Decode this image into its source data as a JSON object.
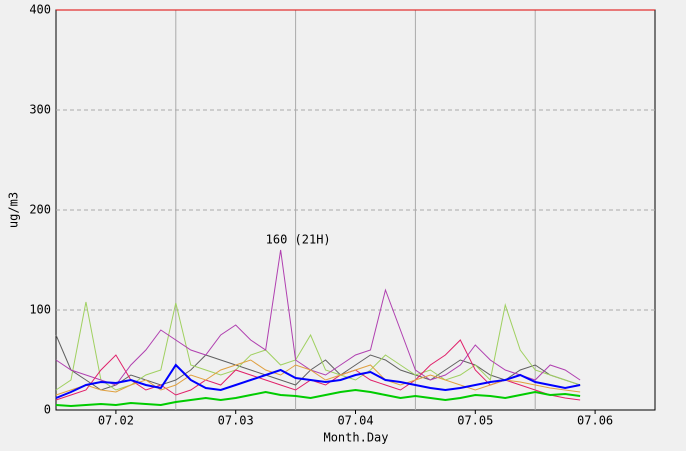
{
  "chart_data": {
    "type": "line",
    "xlabel": "Month.Day",
    "ylabel": "ug/m3",
    "annotation": "160 (21H)",
    "xlim": [
      1.5,
      6.5
    ],
    "ylim": [
      0,
      400
    ],
    "xticks": [
      {
        "value": 2,
        "label": "07.02"
      },
      {
        "value": 3,
        "label": "07.03"
      },
      {
        "value": 4,
        "label": "07.04"
      },
      {
        "value": 5,
        "label": "07.05"
      },
      {
        "value": 6,
        "label": "07.06"
      }
    ],
    "yticks": [
      0,
      100,
      200,
      300,
      400
    ],
    "grid": true,
    "x": [
      1.5,
      1.625,
      1.75,
      1.875,
      2,
      2.125,
      2.25,
      2.375,
      2.5,
      2.625,
      2.75,
      2.875,
      3,
      3.125,
      3.25,
      3.375,
      3.5,
      3.625,
      3.75,
      3.875,
      4,
      4.125,
      4.25,
      4.375,
      4.5,
      4.625,
      4.75,
      4.875,
      5,
      5.125,
      5.25,
      5.375,
      5.5,
      5.625,
      5.75,
      5.875
    ],
    "series": [
      {
        "color": "#606060",
        "values": [
          75,
          40,
          30,
          20,
          25,
          35,
          30,
          25,
          30,
          40,
          55,
          50,
          45,
          40,
          35,
          30,
          25,
          40,
          50,
          35,
          45,
          55,
          50,
          40,
          35,
          30,
          40,
          50,
          45,
          35,
          30,
          40,
          45,
          35,
          30,
          25
        ]
      },
      {
        "color": "#a0d060",
        "values": [
          20,
          30,
          108,
          30,
          20,
          25,
          35,
          40,
          107,
          45,
          40,
          35,
          40,
          55,
          60,
          45,
          50,
          75,
          40,
          35,
          30,
          40,
          55,
          45,
          35,
          40,
          30,
          35,
          45,
          30,
          105,
          60,
          40,
          35,
          30,
          25
        ]
      },
      {
        "color": "#b040b0",
        "values": [
          50,
          40,
          35,
          30,
          25,
          45,
          60,
          80,
          70,
          60,
          55,
          75,
          85,
          70,
          60,
          160,
          50,
          40,
          35,
          45,
          55,
          60,
          120,
          80,
          40,
          30,
          35,
          45,
          65,
          50,
          40,
          35,
          30,
          45,
          40,
          30
        ]
      },
      {
        "color": "#e0206a",
        "values": [
          10,
          15,
          20,
          40,
          55,
          30,
          20,
          25,
          15,
          20,
          30,
          25,
          40,
          35,
          30,
          25,
          20,
          30,
          25,
          35,
          40,
          30,
          25,
          20,
          30,
          45,
          55,
          70,
          40,
          25,
          30,
          25,
          20,
          15,
          12,
          10
        ]
      },
      {
        "color": "#e0a040",
        "values": [
          15,
          20,
          25,
          20,
          18,
          25,
          30,
          20,
          25,
          35,
          30,
          40,
          45,
          50,
          40,
          35,
          45,
          40,
          30,
          35,
          40,
          45,
          30,
          25,
          30,
          35,
          30,
          25,
          20,
          25,
          30,
          28,
          25,
          22,
          20,
          18
        ]
      },
      {
        "color": "#00cc00",
        "values": [
          5,
          4,
          5,
          6,
          5,
          7,
          6,
          5,
          8,
          10,
          12,
          10,
          12,
          15,
          18,
          15,
          14,
          12,
          15,
          18,
          20,
          18,
          15,
          12,
          14,
          12,
          10,
          12,
          15,
          14,
          12,
          15,
          18,
          15,
          16,
          14
        ]
      },
      {
        "color": "#0000ff",
        "values": [
          12,
          18,
          25,
          28,
          27,
          30,
          25,
          22,
          45,
          30,
          22,
          20,
          25,
          30,
          35,
          40,
          32,
          30,
          28,
          30,
          35,
          38,
          30,
          28,
          25,
          22,
          20,
          22,
          25,
          28,
          30,
          35,
          28,
          25,
          22,
          25
        ]
      }
    ]
  }
}
